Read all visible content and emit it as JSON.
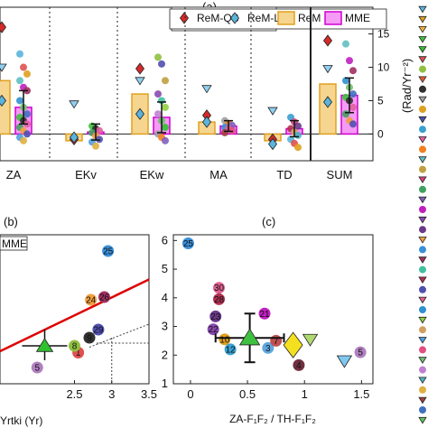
{
  "chart_data": [
    {
      "panel": "(a)",
      "type": "bar",
      "categories": [
        "ZA",
        "EKv",
        "EKw",
        "MA",
        "TD",
        "SUM"
      ],
      "ylabel": "(Rad/Yr⁻²)",
      "ylim": [
        -4,
        19
      ],
      "yticks": [
        "0",
        "5",
        "10",
        "15"
      ],
      "legend": [
        "ReM-QB",
        "ReM-LF",
        "ReM",
        "MME"
      ],
      "legend_position": "top",
      "separator": "dotted vertical lines between categories, solid line before SUM",
      "zero_line": true,
      "series": [
        {
          "name": "ReM",
          "values": [
            8.0,
            -1.0,
            6.0,
            1.8,
            -1.0,
            7.5
          ],
          "color": "#f5d590",
          "edge": "#e0a020"
        },
        {
          "name": "MME",
          "values": [
            4.0,
            0.3,
            2.5,
            1.2,
            0.8,
            5.8
          ],
          "color": "#f59af5",
          "edge": "#d000d0",
          "err": [
            2.5,
            1.2,
            2.3,
            0.8,
            1.2,
            2.6
          ]
        },
        {
          "name": "ReM-QB",
          "values": [
            16.0,
            -0.8,
            9.8,
            2.8,
            -0.8,
            14.0
          ],
          "color": "#d42a2a"
        },
        {
          "name": "ReM-LF",
          "values": [
            5.0,
            -0.5,
            3.0,
            1.8,
            -1.5,
            4.8
          ],
          "color": "#5ab4dc"
        }
      ],
      "member_values": [
        [
          12,
          10,
          9,
          8,
          7,
          6.5,
          5,
          4,
          3,
          2.5,
          2,
          1.5,
          1,
          0.5,
          0,
          -0.5,
          -1
        ],
        [
          1.2,
          0.8,
          0.5,
          0.2,
          -0.3,
          -0.8,
          -1.2,
          -1.8
        ],
        [
          11.5,
          10.5,
          8,
          6,
          5,
          4,
          3,
          2,
          1,
          0,
          -0.5,
          -1
        ],
        [
          2,
          1.6,
          1.3,
          1,
          0.8,
          0.5,
          0.2
        ],
        [
          2.5,
          1.8,
          1.2,
          0.8,
          0.3,
          -0.2,
          -0.8,
          -1.4,
          -2
        ],
        [
          13.5,
          11,
          9.5,
          8,
          7,
          6,
          5.5,
          5,
          4,
          3,
          2,
          1.5
        ]
      ]
    },
    {
      "panel": "(b)",
      "type": "scatter",
      "xlabel": "Yrtki (Yr)",
      "xticks": [
        "2.5",
        "3",
        "3.5"
      ],
      "xlim": [
        1.5,
        3.5
      ],
      "ylim": [
        1,
        6.5
      ],
      "legend": [
        "MME"
      ],
      "points": [
        {
          "label": "25",
          "x": 2.95,
          "y": 5.9,
          "color": "#3a8fd8"
        },
        {
          "label": "24",
          "x": 2.72,
          "y": 4.1,
          "color": "#f0a040"
        },
        {
          "label": "26",
          "x": 2.9,
          "y": 4.2,
          "color": "#a03060"
        },
        {
          "label": "29",
          "x": 2.82,
          "y": 3.0,
          "color": "#5050b0"
        },
        {
          "label": "1",
          "x": 2.55,
          "y": 2.15,
          "color": "#e05050"
        },
        {
          "label": "9",
          "x": 2.7,
          "y": 2.7,
          "color": "#303030"
        },
        {
          "label": "5",
          "x": 2.0,
          "y": 1.6,
          "color": "#b080c0"
        },
        {
          "label": "8",
          "x": 2.5,
          "y": 2.4,
          "color": "#90c040"
        },
        {
          "label": "MME",
          "x": 2.1,
          "y": 2.4,
          "color": "#30c030",
          "marker": "triangle"
        }
      ],
      "fit_line": {
        "x": [
          1.5,
          3.5
        ],
        "y": [
          2.2,
          4.85
        ],
        "color": "#e00000"
      }
    },
    {
      "panel": "(c)",
      "type": "scatter",
      "xlabel": "ZA-F₁F₂ / TH-F₁F₂",
      "xticks": [
        "0",
        "0.5",
        "1",
        "1.5"
      ],
      "xlim": [
        -0.15,
        1.6
      ],
      "yticks": [
        "1",
        "2",
        "3",
        "4",
        "5",
        "6"
      ],
      "ylim": [
        1,
        6.2
      ],
      "points": [
        {
          "label": "25",
          "x": -0.02,
          "y": 5.9,
          "color": "#3a8fd8"
        },
        {
          "label": "30",
          "x": 0.25,
          "y": 4.35,
          "color": "#e06090"
        },
        {
          "label": "28",
          "x": 0.25,
          "y": 3.95,
          "color": "#b03050"
        },
        {
          "label": "23",
          "x": 0.22,
          "y": 3.35,
          "color": "#6a3a8a"
        },
        {
          "label": "21",
          "x": 0.65,
          "y": 3.45,
          "color": "#c020c0"
        },
        {
          "label": "22",
          "x": 0.2,
          "y": 2.9,
          "color": "#8a4ab0"
        },
        {
          "label": "10",
          "x": 0.3,
          "y": 2.55,
          "color": "#e0a020"
        },
        {
          "label": "12",
          "x": 0.35,
          "y": 2.2,
          "color": "#3aa0d0"
        },
        {
          "label": "3",
          "x": 0.68,
          "y": 2.25,
          "color": "#60a8e0"
        },
        {
          "label": "7",
          "x": 0.75,
          "y": 2.5,
          "color": "#c05050"
        },
        {
          "label": "4",
          "x": 0.95,
          "y": 1.65,
          "color": "#703040"
        },
        {
          "label": "5",
          "x": 1.49,
          "y": 2.1,
          "color": "#b080c0"
        }
      ],
      "markers": [
        {
          "name": "MME",
          "x": 0.52,
          "y": 2.6,
          "shape": "triangle",
          "color": "#40c040"
        },
        {
          "name": "ReM",
          "x": 0.9,
          "y": 2.35,
          "shape": "diamond",
          "color": "#f5e020"
        },
        {
          "name": "ReM-LF",
          "x": 1.35,
          "y": 1.8,
          "shape": "inv-triangle",
          "color": "#80c8f0"
        },
        {
          "name": "ReM-QB",
          "x": 1.05,
          "y": 2.55,
          "shape": "inv-triangle",
          "color": "#b0d870"
        }
      ],
      "mme_error": {
        "x": 0.52,
        "y": 2.6,
        "xerr": 0.3,
        "yerr": 0.85
      }
    }
  ],
  "legend_strip": {
    "colors": [
      "#5ab4dc",
      "#e0a020",
      "#f0b040",
      "#40c040",
      "#30c030",
      "#e05050",
      "#90c040",
      "#e06030",
      "#303030",
      "#a0a0a0",
      "#e0a020",
      "#5050b0",
      "#3aa0d0",
      "#e060a0",
      "#f08020",
      "#60c0c0",
      "#c0a040",
      "#d04080",
      "#40a060",
      "#8060c0",
      "#c020c0",
      "#8a4ab0",
      "#6a3a8a",
      "#f0a040",
      "#3a8fd8",
      "#a03060",
      "#40c0a0",
      "#b03050",
      "#5050b0",
      "#e06090",
      "#3090d0",
      "#90d040",
      "#d0a060",
      "#50a0e0",
      "#e05080",
      "#70c070",
      "#c080d0",
      "#50b0c0",
      "#e0b040",
      "#a04040",
      "#4070c0",
      "#60c060"
    ],
    "shapes_top": 6
  }
}
